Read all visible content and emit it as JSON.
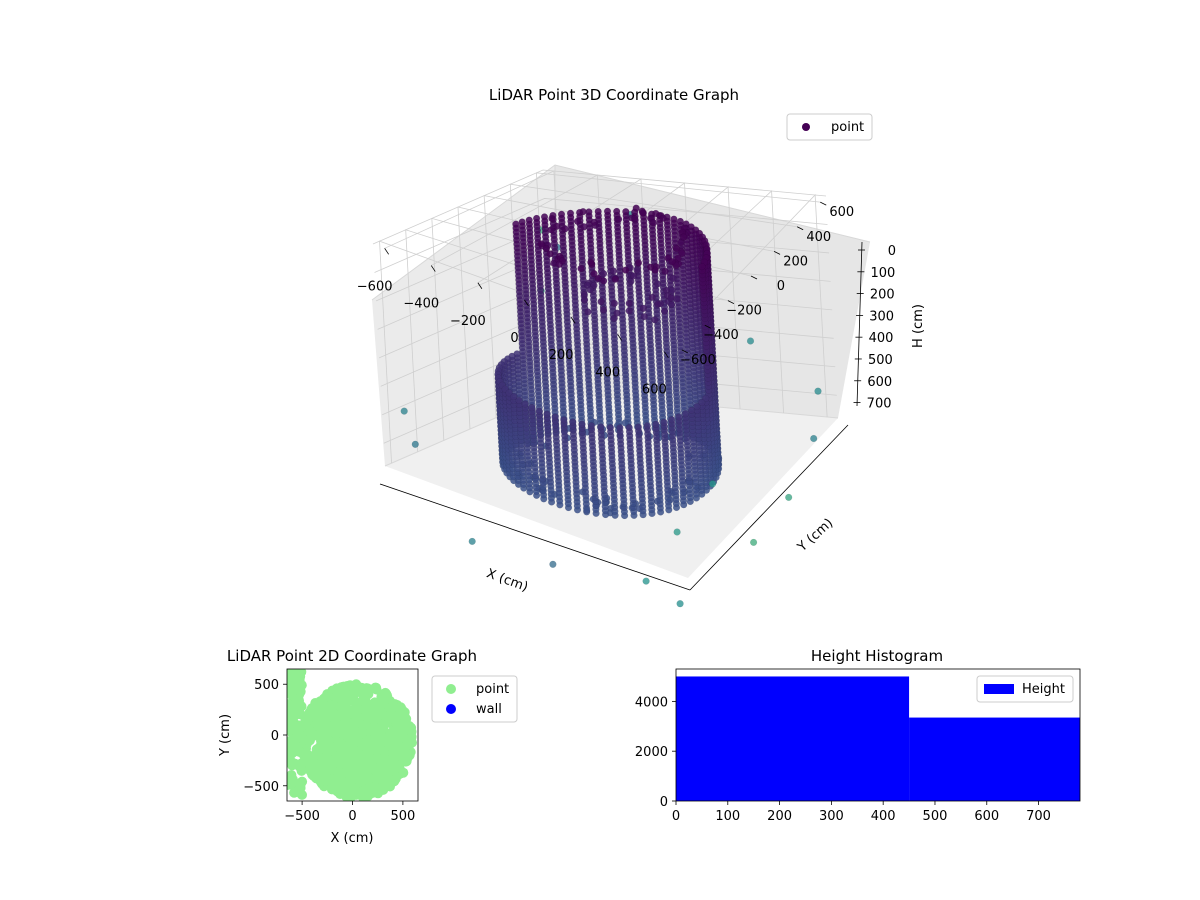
{
  "colors": {
    "green_point": "#90ee90",
    "wall_blue": "#0000ff",
    "hist_blue": "#0000ff",
    "legend_3d_marker": "#440154",
    "viridis_dark": "#440154",
    "viridis_mid": "#3b528b",
    "viridis_teal": "#21918c",
    "viridis_light": "#5ec962"
  },
  "chart_data": [
    {
      "id": "scatter3d",
      "type": "scatter",
      "title": "LiDAR Point 3D Coordinate Graph",
      "xlabel": "X (cm)",
      "ylabel": "Y (cm)",
      "zlabel": "H (cm)",
      "x_ticks": [
        "−600",
        "−400",
        "−200",
        "0",
        "200",
        "400",
        "600"
      ],
      "y_ticks": [
        "−600",
        "−400",
        "−200",
        "0",
        "200",
        "400",
        "600"
      ],
      "z_ticks": [
        "0",
        "100",
        "200",
        "300",
        "400",
        "500",
        "600",
        "700"
      ],
      "xlim": [
        -650,
        650
      ],
      "ylim": [
        -650,
        650
      ],
      "zlim": [
        0,
        780
      ],
      "z_inverted": true,
      "grid": true,
      "legend": [
        {
          "label": "point",
          "color": "#440154",
          "marker": "circle"
        }
      ],
      "legend_position": "top-right",
      "colormap": "viridis",
      "description_shape": "approximately circular room wall of radius ~420 cm with points spanning heights 0–700 cm, plus a ring of points near the ceiling and scattered outliers"
    },
    {
      "id": "scatter2d",
      "type": "scatter",
      "title": "LiDAR Point 2D Coordinate Graph",
      "xlabel": "X (cm)",
      "ylabel": "Y (cm)",
      "xlim": [
        -650,
        650
      ],
      "ylim": [
        -650,
        650
      ],
      "x_ticks": [
        "−500",
        "0",
        "500"
      ],
      "y_ticks": [
        "−500",
        "0",
        "500"
      ],
      "legend": [
        {
          "label": "point",
          "color": "#90ee90"
        },
        {
          "label": "wall",
          "color": "#0000ff"
        }
      ],
      "legend_position": "outside-right"
    },
    {
      "id": "histogram",
      "type": "bar",
      "title": "Height Histogram",
      "xlim": [
        0,
        780
      ],
      "ylim": [
        0,
        5300
      ],
      "x_ticks": [
        "0",
        "100",
        "200",
        "300",
        "400",
        "500",
        "600",
        "700"
      ],
      "y_ticks": [
        "0",
        "2000",
        "4000"
      ],
      "bins": [
        {
          "x0": 0,
          "x1": 450,
          "count": 5000
        },
        {
          "x0": 450,
          "x1": 780,
          "count": 3350
        }
      ],
      "legend": [
        {
          "label": "Height",
          "color": "#0000ff"
        }
      ],
      "legend_position": "top-right"
    }
  ]
}
